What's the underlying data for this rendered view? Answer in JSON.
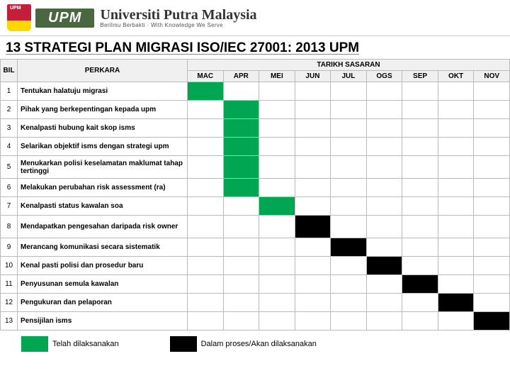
{
  "header": {
    "upm_logo": "UPM",
    "uni_name": "Universiti Putra Malaysia",
    "uni_tagline": "Berilmu Berbakti · With Knowledge We Serve"
  },
  "title": "13 STRATEGI PLAN MIGRASI ISO/IEC 27001: 2013 UPM",
  "table_head": {
    "bil": "BIL",
    "perkara": "PERKARA",
    "tarikh": "TARIKH SASARAN",
    "months": [
      "MAC",
      "APR",
      "MEI",
      "JUN",
      "JUL",
      "OGS",
      "SEP",
      "OKT",
      "NOV"
    ]
  },
  "rows": [
    {
      "bil": "1",
      "perkara": "Tentukan halatuju migrasi",
      "cells": [
        "green",
        "",
        "",
        "",
        "",
        "",
        "",
        "",
        ""
      ]
    },
    {
      "bil": "2",
      "perkara": "Pihak yang berkepentingan kepada upm",
      "cells": [
        "",
        "green",
        "",
        "",
        "",
        "",
        "",
        "",
        ""
      ]
    },
    {
      "bil": "3",
      "perkara": "Kenalpasti hubung kait skop isms",
      "cells": [
        "",
        "green",
        "",
        "",
        "",
        "",
        "",
        "",
        ""
      ]
    },
    {
      "bil": "4",
      "perkara": "Selarikan objektif isms dengan strategi upm",
      "cells": [
        "",
        "green",
        "",
        "",
        "",
        "",
        "",
        "",
        ""
      ]
    },
    {
      "bil": "5",
      "perkara": "Menukarkan polisi keselamatan maklumat tahap tertinggi",
      "cells": [
        "",
        "green",
        "",
        "",
        "",
        "",
        "",
        "",
        ""
      ],
      "tall": true
    },
    {
      "bil": "6",
      "perkara": "Melakukan perubahan risk assessment (ra)",
      "cells": [
        "",
        "green",
        "",
        "",
        "",
        "",
        "",
        "",
        ""
      ]
    },
    {
      "bil": "7",
      "perkara": "Kenalpasti status kawalan soa",
      "cells": [
        "",
        "",
        "green",
        "",
        "",
        "",
        "",
        "",
        ""
      ]
    },
    {
      "bil": "8",
      "perkara": "Mendapatkan pengesahan daripada risk owner",
      "cells": [
        "",
        "",
        "",
        "black",
        "",
        "",
        "",
        "",
        ""
      ],
      "tall": true
    },
    {
      "bil": "9",
      "perkara": "Merancang komunikasi secara sistematik",
      "cells": [
        "",
        "",
        "",
        "",
        "black",
        "",
        "",
        "",
        ""
      ]
    },
    {
      "bil": "10",
      "perkara": "Kenal pasti polisi dan prosedur baru",
      "cells": [
        "",
        "",
        "",
        "",
        "",
        "black",
        "",
        "",
        ""
      ]
    },
    {
      "bil": "11",
      "perkara": "Penyusunan semula kawalan",
      "cells": [
        "",
        "",
        "",
        "",
        "",
        "",
        "black",
        "",
        ""
      ]
    },
    {
      "bil": "12",
      "perkara": "Pengukuran dan pelaporan",
      "cells": [
        "",
        "",
        "",
        "",
        "",
        "",
        "",
        "black",
        ""
      ]
    },
    {
      "bil": "13",
      "perkara": "Pensijilan isms",
      "cells": [
        "",
        "",
        "",
        "",
        "",
        "",
        "",
        "",
        "black"
      ]
    }
  ],
  "legend": {
    "done": "Telah dilaksanakan",
    "pending": "Dalam proses/Akan dilaksanakan"
  },
  "colors": {
    "green": "#00a651",
    "black": "#000000"
  }
}
